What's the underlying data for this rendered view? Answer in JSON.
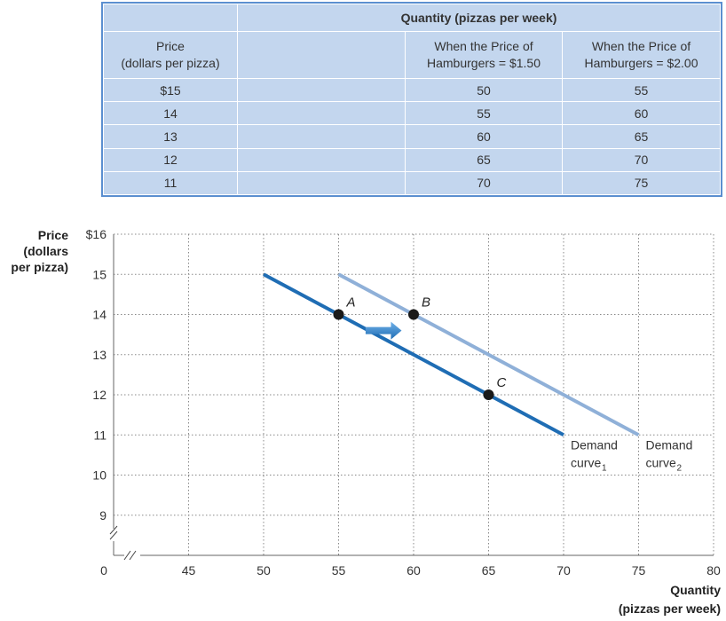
{
  "table": {
    "title": "Quantity (pizzas per week)",
    "header_price": [
      "Price",
      "(dollars per pizza)"
    ],
    "header_col1": [
      "When the Price of",
      "Hamburgers = $1.50"
    ],
    "header_col2": [
      "When the Price of",
      "Hamburgers = $2.00"
    ],
    "rows": [
      {
        "price": "$15",
        "q1": "50",
        "q2": "55"
      },
      {
        "price": "14",
        "q1": "55",
        "q2": "60"
      },
      {
        "price": "13",
        "q1": "60",
        "q2": "65"
      },
      {
        "price": "12",
        "q1": "65",
        "q2": "70"
      },
      {
        "price": "11",
        "q1": "70",
        "q2": "75"
      }
    ]
  },
  "chart_data": {
    "type": "line",
    "ylabel": [
      "Price",
      "(dollars",
      "per pizza)"
    ],
    "xlabel": [
      "Quantity",
      "(pizzas per week)"
    ],
    "x_ticks": [
      "0",
      "45",
      "50",
      "55",
      "60",
      "65",
      "70",
      "75",
      "80"
    ],
    "x_tick_values": [
      40,
      45,
      50,
      55,
      60,
      65,
      70,
      75,
      80
    ],
    "y_ticks": [
      "$16",
      "15",
      "14",
      "13",
      "12",
      "11",
      "10",
      "9"
    ],
    "y_tick_values": [
      16,
      15,
      14,
      13,
      12,
      11,
      10,
      9
    ],
    "xlim": [
      40,
      80
    ],
    "ylim": [
      8,
      16
    ],
    "axis_break": true,
    "grid": "dotted",
    "series": [
      {
        "name": "Demand curve1",
        "label_main": "Demand",
        "label_sub": "curve",
        "label_subscript": "1",
        "color": "#1f6db4",
        "x": [
          50,
          55,
          60,
          65,
          70
        ],
        "y": [
          15,
          14,
          13,
          12,
          11
        ]
      },
      {
        "name": "Demand curve2",
        "label_main": "Demand",
        "label_sub": "curve",
        "label_subscript": "2",
        "color": "#8fb0d8",
        "x": [
          55,
          60,
          65,
          70,
          75
        ],
        "y": [
          15,
          14,
          13,
          12,
          11
        ]
      }
    ],
    "points": [
      {
        "label": "A",
        "x": 55,
        "y": 14
      },
      {
        "label": "B",
        "x": 60,
        "y": 14
      },
      {
        "label": "C",
        "x": 65,
        "y": 12
      }
    ],
    "shift_arrow": {
      "direction": "right",
      "from": [
        56.8,
        13.6
      ],
      "to": [
        59.2,
        13.6
      ],
      "color": "#2f7dc4"
    }
  }
}
